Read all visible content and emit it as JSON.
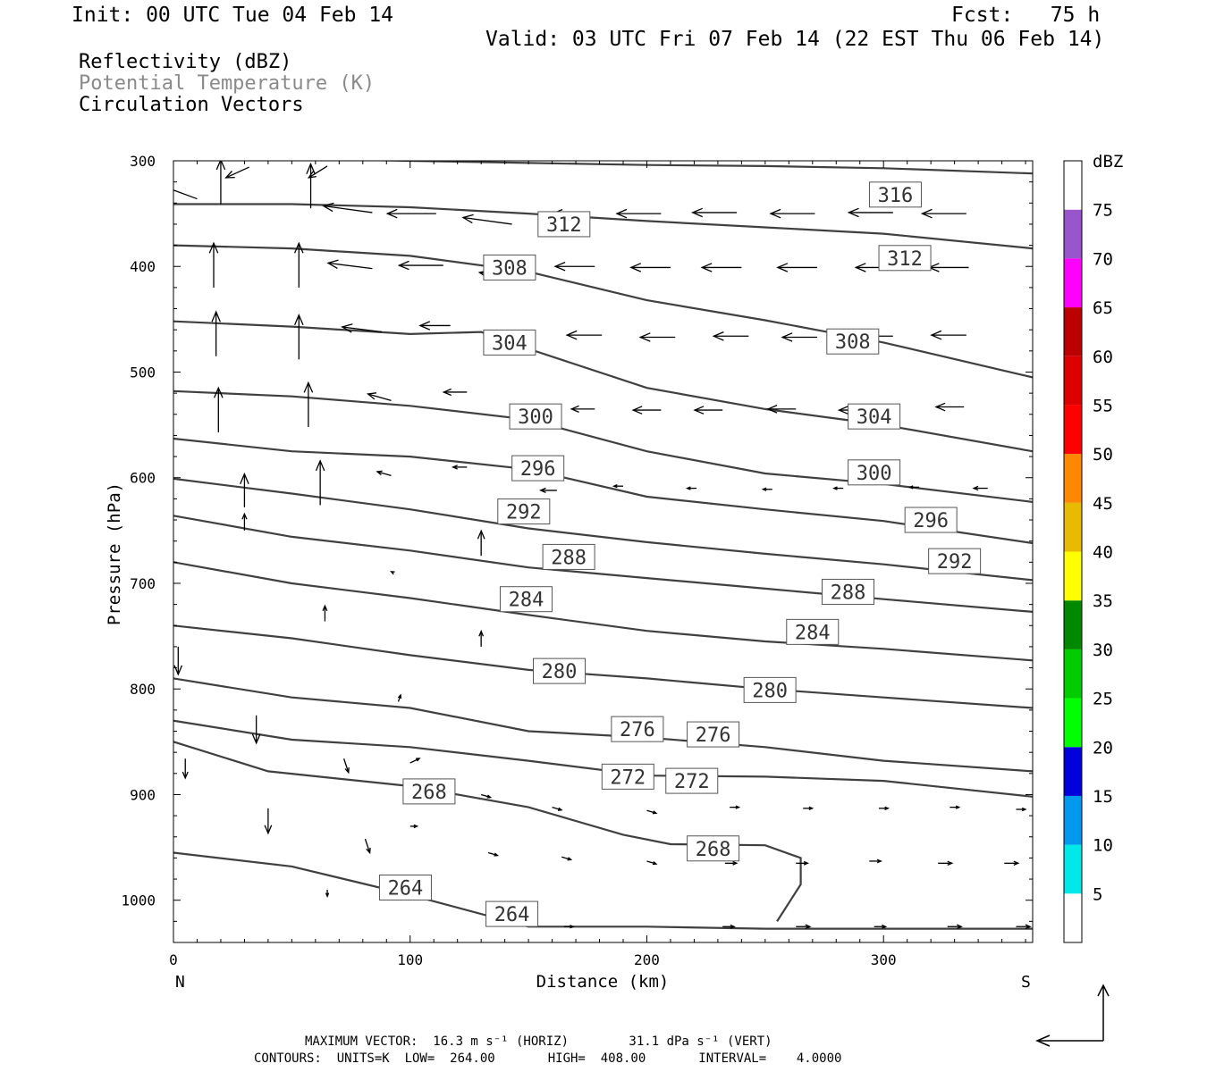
{
  "header": {
    "init": "Init: 00 UTC Tue 04 Feb 14",
    "fcst": "Fcst:   75 h",
    "valid": "Valid: 03 UTC Fri 07 Feb 14 (22 EST Thu 06 Feb 14)"
  },
  "fields": [
    "Reflectivity (dBZ)",
    "Potential Temperature (K)",
    "Circulation Vectors"
  ],
  "colors": {
    "contour": "#404040",
    "potential_temp_legend": "#8a8a8a"
  },
  "footer": {
    "line1": "MAXIMUM VECTOR:  16.3 m s⁻¹ (HORIZ)        31.1 dPa s⁻¹ (VERT)",
    "line2": "CONTOURS:  UNITS=K  LOW=  264.00       HIGH=  408.00       INTERVAL=    4.0000"
  },
  "chart_data": {
    "type": "line",
    "xlabel": "Distance (km)",
    "ylabel": "Pressure (hPa)",
    "xlim": [
      0,
      363
    ],
    "ylim": [
      1040,
      300
    ],
    "x_ticks": [
      0,
      100,
      200,
      300
    ],
    "y_ticks": [
      300,
      400,
      500,
      600,
      700,
      800,
      900,
      1000
    ],
    "x_end_labels": {
      "left": "N",
      "right": "S"
    },
    "colorbar": {
      "title": "dBZ",
      "levels": [
        5,
        10,
        15,
        20,
        25,
        30,
        35,
        40,
        45,
        50,
        55,
        60,
        65,
        70,
        75
      ],
      "colors": [
        "#00e8e8",
        "#0099ee",
        "#0000dd",
        "#00ff00",
        "#00cc00",
        "#008800",
        "#ffff00",
        "#e6bb00",
        "#ff8800",
        "#ff0000",
        "#dd0000",
        "#bb0000",
        "#ff00ff",
        "#9955cc",
        "#ffffff"
      ]
    },
    "series": [
      {
        "name": "316",
        "x": [
          0,
          50,
          100,
          150,
          200,
          250,
          300,
          363
        ],
        "y": [
          296,
          298,
          300,
          302,
          304,
          305,
          307,
          312
        ]
      },
      {
        "name": "312",
        "x": [
          0,
          50,
          100,
          150,
          200,
          250,
          300,
          363
        ],
        "y": [
          341,
          341,
          344,
          350,
          357,
          363,
          369,
          383
        ]
      },
      {
        "name": "308",
        "x": [
          0,
          50,
          100,
          150,
          200,
          250,
          300,
          363
        ],
        "y": [
          380,
          383,
          390,
          405,
          432,
          451,
          472,
          505
        ]
      },
      {
        "name": "304",
        "x": [
          0,
          50,
          100,
          130,
          150,
          200,
          250,
          300,
          363
        ],
        "y": [
          452,
          457,
          464,
          462,
          478,
          515,
          535,
          550,
          575
        ]
      },
      {
        "name": "300",
        "x": [
          0,
          50,
          100,
          150,
          200,
          250,
          300,
          363
        ],
        "y": [
          518,
          523,
          532,
          545,
          575,
          596,
          606,
          623
        ]
      },
      {
        "name": "296",
        "x": [
          0,
          50,
          100,
          150,
          200,
          250,
          300,
          363
        ],
        "y": [
          563,
          575,
          580,
          592,
          618,
          630,
          641,
          662
        ]
      },
      {
        "name": "292",
        "x": [
          0,
          50,
          100,
          150,
          200,
          250,
          300,
          363
        ],
        "y": [
          601,
          615,
          630,
          648,
          661,
          672,
          682,
          697
        ]
      },
      {
        "name": "288",
        "x": [
          0,
          50,
          100,
          150,
          200,
          250,
          300,
          363
        ],
        "y": [
          636,
          656,
          669,
          685,
          695,
          705,
          715,
          727
        ]
      },
      {
        "name": "284",
        "x": [
          0,
          50,
          100,
          150,
          200,
          250,
          300,
          363
        ],
        "y": [
          680,
          700,
          714,
          730,
          745,
          755,
          762,
          773
        ]
      },
      {
        "name": "280",
        "x": [
          0,
          50,
          100,
          150,
          200,
          250,
          300,
          363
        ],
        "y": [
          740,
          752,
          768,
          782,
          790,
          800,
          808,
          818
        ]
      },
      {
        "name": "276",
        "x": [
          0,
          50,
          100,
          150,
          200,
          250,
          300,
          363
        ],
        "y": [
          790,
          808,
          818,
          840,
          846,
          855,
          868,
          878
        ]
      },
      {
        "name": "272",
        "x": [
          0,
          50,
          100,
          150,
          200,
          250,
          300,
          363
        ],
        "y": [
          830,
          848,
          855,
          868,
          882,
          883,
          887,
          902
        ]
      },
      {
        "name": "268",
        "x": [
          0,
          40,
          100,
          150,
          190,
          210,
          250,
          265,
          265,
          255
        ],
        "y": [
          850,
          878,
          892,
          912,
          938,
          947,
          948,
          960,
          985,
          1020
        ]
      },
      {
        "name": "264",
        "x": [
          0,
          50,
          100,
          150,
          200,
          250,
          363
        ],
        "y": [
          955,
          968,
          995,
          1025,
          1025,
          1027,
          1027
        ]
      }
    ],
    "annotations": [
      {
        "text": "316",
        "x": 305,
        "y": 332
      },
      {
        "text": "312",
        "x": 165,
        "y": 360
      },
      {
        "text": "312",
        "x": 309,
        "y": 392
      },
      {
        "text": "308",
        "x": 142,
        "y": 401
      },
      {
        "text": "308",
        "x": 287,
        "y": 471
      },
      {
        "text": "304",
        "x": 142,
        "y": 472
      },
      {
        "text": "304",
        "x": 296,
        "y": 542
      },
      {
        "text": "300",
        "x": 153,
        "y": 542
      },
      {
        "text": "300",
        "x": 296,
        "y": 595
      },
      {
        "text": "296",
        "x": 154,
        "y": 591
      },
      {
        "text": "296",
        "x": 320,
        "y": 640
      },
      {
        "text": "292",
        "x": 148,
        "y": 632
      },
      {
        "text": "292",
        "x": 330,
        "y": 679
      },
      {
        "text": "288",
        "x": 167,
        "y": 675
      },
      {
        "text": "288",
        "x": 285,
        "y": 708
      },
      {
        "text": "284",
        "x": 149,
        "y": 715
      },
      {
        "text": "284",
        "x": 270,
        "y": 746
      },
      {
        "text": "280",
        "x": 163,
        "y": 783
      },
      {
        "text": "280",
        "x": 252,
        "y": 801
      },
      {
        "text": "276",
        "x": 196,
        "y": 838
      },
      {
        "text": "276",
        "x": 228,
        "y": 843
      },
      {
        "text": "272",
        "x": 192,
        "y": 883
      },
      {
        "text": "272",
        "x": 219,
        "y": 887
      },
      {
        "text": "268",
        "x": 108,
        "y": 897
      },
      {
        "text": "268",
        "x": 228,
        "y": 951
      },
      {
        "text": "264",
        "x": 98,
        "y": 988
      },
      {
        "text": "264",
        "x": 143,
        "y": 1013
      }
    ],
    "vectors": [
      {
        "x": 32,
        "y": 306,
        "u": -10,
        "w": 19
      },
      {
        "x": 65,
        "y": 305,
        "u": -8,
        "w": 21
      },
      {
        "x": 10,
        "y": 336,
        "u": -22,
        "w": -34
      },
      {
        "x": 20,
        "y": 341,
        "u": 0,
        "w": -80
      },
      {
        "x": 58,
        "y": 345,
        "u": 0,
        "w": -80
      },
      {
        "x": 84,
        "y": 349,
        "u": -21,
        "w": -12
      },
      {
        "x": 111,
        "y": 350,
        "u": -21,
        "w": 0
      },
      {
        "x": 143,
        "y": 360,
        "u": -21,
        "w": -12
      },
      {
        "x": 173,
        "y": 350,
        "u": -13,
        "w": 0
      },
      {
        "x": 206,
        "y": 350,
        "u": -19,
        "w": 0
      },
      {
        "x": 238,
        "y": 349,
        "u": -19,
        "w": 0
      },
      {
        "x": 271,
        "y": 350,
        "u": -19,
        "w": 0
      },
      {
        "x": 304,
        "y": 349,
        "u": -19,
        "w": 0
      },
      {
        "x": 335,
        "y": 350,
        "u": -19,
        "w": 0
      },
      {
        "x": 17,
        "y": 420,
        "u": 0,
        "w": -80
      },
      {
        "x": 53,
        "y": 420,
        "u": 0,
        "w": -80
      },
      {
        "x": 84,
        "y": 402,
        "u": -19,
        "w": -10
      },
      {
        "x": 114,
        "y": 399,
        "u": -19,
        "w": 0
      },
      {
        "x": 146,
        "y": 412,
        "u": -17,
        "w": -12
      },
      {
        "x": 178,
        "y": 400,
        "u": -17,
        "w": 0
      },
      {
        "x": 210,
        "y": 401,
        "u": -17,
        "w": 0
      },
      {
        "x": 240,
        "y": 401,
        "u": -17,
        "w": 0
      },
      {
        "x": 272,
        "y": 401,
        "u": -17,
        "w": 0
      },
      {
        "x": 305,
        "y": 401,
        "u": -17,
        "w": 0
      },
      {
        "x": 336,
        "y": 401,
        "u": -17,
        "w": 0
      },
      {
        "x": 18,
        "y": 485,
        "u": 0,
        "w": -80
      },
      {
        "x": 53,
        "y": 488,
        "u": 0,
        "w": -80
      },
      {
        "x": 88,
        "y": 462,
        "u": -17,
        "w": -9
      },
      {
        "x": 117,
        "y": 456,
        "u": -13,
        "w": 0
      },
      {
        "x": 149,
        "y": 474,
        "u": -13,
        "w": -9
      },
      {
        "x": 181,
        "y": 465,
        "u": -15,
        "w": 0
      },
      {
        "x": 212,
        "y": 467,
        "u": -15,
        "w": 0
      },
      {
        "x": 243,
        "y": 466,
        "u": -15,
        "w": 0
      },
      {
        "x": 272,
        "y": 467,
        "u": -15,
        "w": 0
      },
      {
        "x": 304,
        "y": 466,
        "u": -15,
        "w": 0
      },
      {
        "x": 335,
        "y": 465,
        "u": -15,
        "w": 0
      },
      {
        "x": 19,
        "y": 557,
        "u": 0,
        "w": -80
      },
      {
        "x": 57,
        "y": 552,
        "u": 0,
        "w": -80
      },
      {
        "x": 92,
        "y": 527,
        "u": -10,
        "w": -12
      },
      {
        "x": 124,
        "y": 519,
        "u": -10,
        "w": 0
      },
      {
        "x": 178,
        "y": 535,
        "u": -10,
        "w": 0
      },
      {
        "x": 206,
        "y": 536,
        "u": -12,
        "w": 0
      },
      {
        "x": 232,
        "y": 536,
        "u": -12,
        "w": 0
      },
      {
        "x": 263,
        "y": 535,
        "u": -12,
        "w": 0
      },
      {
        "x": 293,
        "y": 536,
        "u": -12,
        "w": 0
      },
      {
        "x": 334,
        "y": 533,
        "u": -12,
        "w": 0
      },
      {
        "x": 30,
        "y": 628,
        "u": 0,
        "w": -60
      },
      {
        "x": 62,
        "y": 626,
        "u": 0,
        "w": -80
      },
      {
        "x": 92,
        "y": 598,
        "u": -6,
        "w": -7
      },
      {
        "x": 124,
        "y": 590,
        "u": -6,
        "w": 0
      },
      {
        "x": 162,
        "y": 612,
        "u": -7,
        "w": 0
      },
      {
        "x": 190,
        "y": 608,
        "u": -4,
        "w": 0
      },
      {
        "x": 221,
        "y": 610,
        "u": -4,
        "w": 0
      },
      {
        "x": 253,
        "y": 611,
        "u": -4,
        "w": 0
      },
      {
        "x": 283,
        "y": 610,
        "u": -4,
        "w": 0
      },
      {
        "x": 315,
        "y": 609,
        "u": -4,
        "w": 0
      },
      {
        "x": 344,
        "y": 610,
        "u": -6,
        "w": 0
      },
      {
        "x": 30,
        "y": 650,
        "u": 0,
        "w": -30
      },
      {
        "x": 130,
        "y": 674,
        "u": 0,
        "w": -45
      },
      {
        "x": 93,
        "y": 690,
        "u": -1,
        "w": -2
      },
      {
        "x": 64,
        "y": 736,
        "u": 0,
        "w": -28
      },
      {
        "x": 130,
        "y": 760,
        "u": 0,
        "w": -28
      },
      {
        "x": 2,
        "y": 760,
        "u": 0,
        "w": 50
      },
      {
        "x": 35,
        "y": 825,
        "u": 0,
        "w": 50
      },
      {
        "x": 72,
        "y": 866,
        "u": 2,
        "w": 25
      },
      {
        "x": 95,
        "y": 812,
        "u": 1,
        "w": -12
      },
      {
        "x": 100,
        "y": 870,
        "u": 4,
        "w": -8
      },
      {
        "x": 130,
        "y": 900,
        "u": 4,
        "w": 5
      },
      {
        "x": 5,
        "y": 866,
        "u": 0,
        "w": 35
      },
      {
        "x": 40,
        "y": 913,
        "u": 0,
        "w": 45
      },
      {
        "x": 81,
        "y": 942,
        "u": 2,
        "w": 25
      },
      {
        "x": 100,
        "y": 930,
        "u": 3,
        "w": 0
      },
      {
        "x": 133,
        "y": 955,
        "u": 4,
        "w": 5
      },
      {
        "x": 164,
        "y": 959,
        "u": 4,
        "w": 5
      },
      {
        "x": 200,
        "y": 963,
        "u": 4,
        "w": 5
      },
      {
        "x": 233,
        "y": 965,
        "u": 5,
        "w": 0
      },
      {
        "x": 263,
        "y": 965,
        "u": 5,
        "w": 0
      },
      {
        "x": 294,
        "y": 963,
        "u": 5,
        "w": 0
      },
      {
        "x": 323,
        "y": 965,
        "u": 6,
        "w": 0
      },
      {
        "x": 351,
        "y": 965,
        "u": 6,
        "w": 0
      },
      {
        "x": 160,
        "y": 912,
        "u": 4,
        "w": 5
      },
      {
        "x": 200,
        "y": 915,
        "u": 4,
        "w": 5
      },
      {
        "x": 235,
        "y": 912,
        "u": 4,
        "w": 0
      },
      {
        "x": 266,
        "y": 913,
        "u": 4,
        "w": 0
      },
      {
        "x": 298,
        "y": 913,
        "u": 4,
        "w": 0
      },
      {
        "x": 328,
        "y": 912,
        "u": 4,
        "w": 0
      },
      {
        "x": 356,
        "y": 914,
        "u": 4,
        "w": 0
      },
      {
        "x": 65,
        "y": 990,
        "u": 0,
        "w": 12
      },
      {
        "x": 165,
        "y": 1025,
        "u": 4,
        "w": 0
      },
      {
        "x": 232,
        "y": 1025,
        "u": 5,
        "w": 0
      },
      {
        "x": 263,
        "y": 1025,
        "u": 6,
        "w": 0
      },
      {
        "x": 296,
        "y": 1025,
        "u": 5,
        "w": 0
      },
      {
        "x": 327,
        "y": 1025,
        "u": 6,
        "w": 0
      },
      {
        "x": 356,
        "y": 1025,
        "u": 6,
        "w": 0
      }
    ],
    "vector_key": {
      "u": 16.3,
      "w": 31.1
    }
  }
}
